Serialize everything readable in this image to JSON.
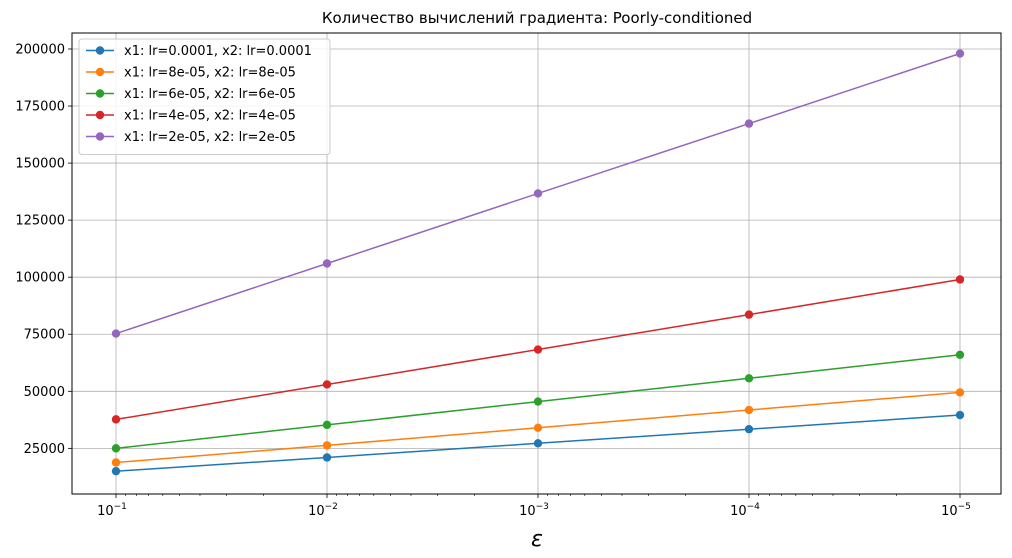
{
  "chart_data": {
    "type": "line",
    "title": "Количество вычислений градиента: Poorly-conditioned",
    "xlabel": "ε",
    "ylabel": "",
    "x_scale": "log",
    "x_reversed": true,
    "x": [
      0.1,
      0.01,
      0.001,
      0.0001,
      1e-05
    ],
    "x_tick_labels": [
      {
        "base": "10",
        "exp": "−1"
      },
      {
        "base": "10",
        "exp": "−2"
      },
      {
        "base": "10",
        "exp": "−3"
      },
      {
        "base": "10",
        "exp": "−4"
      },
      {
        "base": "10",
        "exp": "−5"
      }
    ],
    "y_ticks": [
      25000,
      50000,
      75000,
      100000,
      125000,
      150000,
      175000,
      200000
    ],
    "y_tick_labels": [
      "25000",
      "50000",
      "75000",
      "100000",
      "125000",
      "150000",
      "175000",
      "200000"
    ],
    "ylim": [
      5000,
      207000
    ],
    "grid": true,
    "legend_position": "upper-left",
    "series": [
      {
        "name": "x1: lr=0.0001, x2: lr=0.0001",
        "color": "#1f77b4",
        "values": [
          15000,
          21000,
          27200,
          33400,
          39600
        ]
      },
      {
        "name": "x1: lr=8e-05, x2: lr=8e-05",
        "color": "#ff7f0e",
        "values": [
          18800,
          26300,
          34000,
          41800,
          49500
        ]
      },
      {
        "name": "x1: lr=6e-05, x2: lr=6e-05",
        "color": "#2ca02c",
        "values": [
          25000,
          35300,
          45500,
          55700,
          66000
        ]
      },
      {
        "name": "x1: lr=4e-05, x2: lr=4e-05",
        "color": "#d62728",
        "values": [
          37700,
          53000,
          68300,
          83600,
          99000
        ]
      },
      {
        "name": "x1: lr=2e-05, x2: lr=2e-05",
        "color": "#9467bd",
        "values": [
          75300,
          106000,
          136700,
          167300,
          198000
        ]
      }
    ]
  }
}
